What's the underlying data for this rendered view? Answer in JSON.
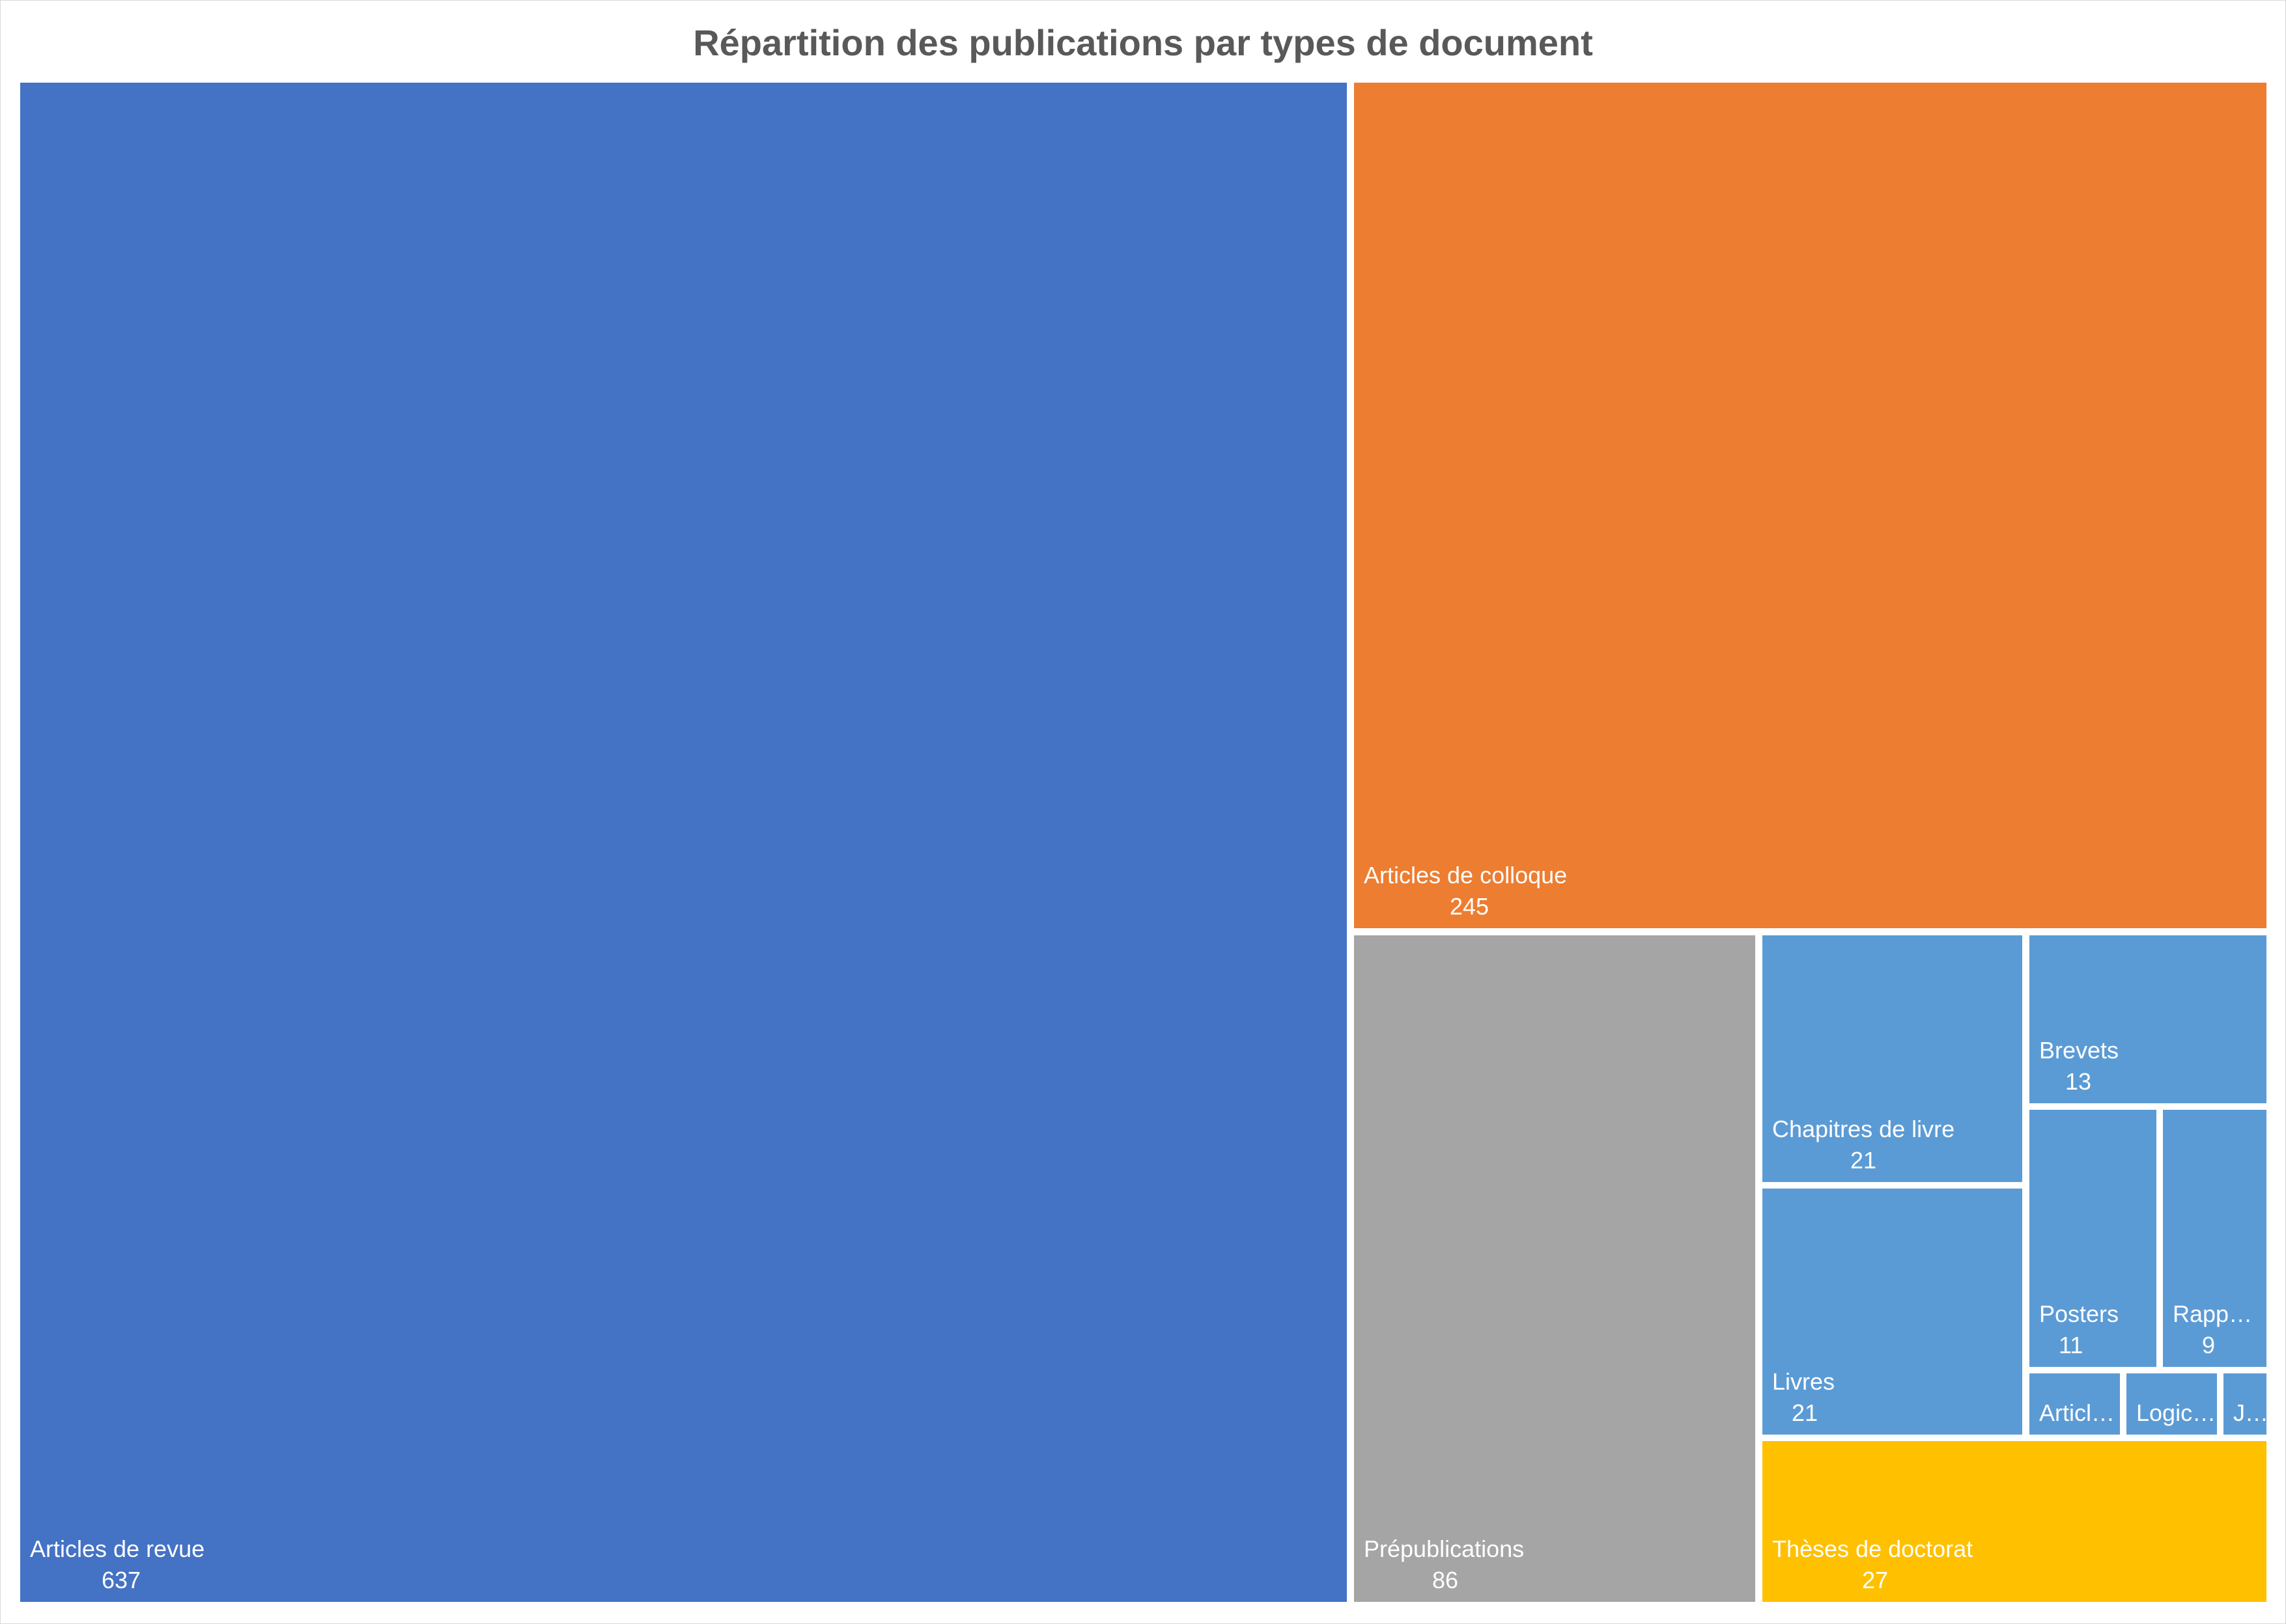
{
  "chart_data": {
    "type": "treemap",
    "title": "Répartition des publications par types de document",
    "items": [
      {
        "label": "Articles de revue",
        "value": 637,
        "color": "#4472C4"
      },
      {
        "label": "Articles de colloque",
        "value": 245,
        "color": "#ED7D31"
      },
      {
        "label": "Prépublications",
        "value": 86,
        "color": "#A5A5A5"
      },
      {
        "label": "Chapitres de livre",
        "value": 21,
        "color": "#5B9BD5"
      },
      {
        "label": "Livres",
        "value": 21,
        "color": "#5B9BD5"
      },
      {
        "label": "Brevets",
        "value": 13,
        "color": "#5B9BD5"
      },
      {
        "label": "Posters",
        "value": 11,
        "color": "#5B9BD5"
      },
      {
        "label": "Rapp…",
        "value": 9,
        "color": "#5B9BD5"
      },
      {
        "label": "Articl…",
        "value": null,
        "color": "#5B9BD5"
      },
      {
        "label": "Logic…",
        "value": null,
        "color": "#5B9BD5"
      },
      {
        "label": "J…",
        "value": null,
        "color": "#5B9BD5"
      },
      {
        "label": "Thèses de doctorat",
        "value": 27,
        "color": "#FFC000"
      }
    ]
  }
}
